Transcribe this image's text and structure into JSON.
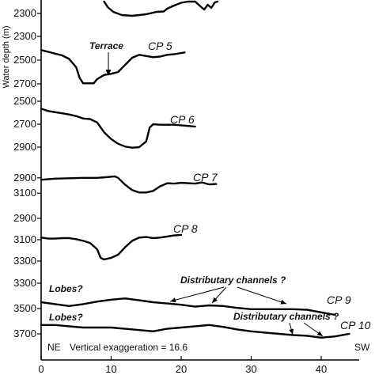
{
  "chart_data": {
    "type": "line",
    "ylabel": "Water depth (m)",
    "x_ticks": [
      0,
      10,
      20,
      30,
      40
    ],
    "xlim": [
      0,
      44
    ],
    "panels": [
      {
        "name": "",
        "yticks": [
          2300
        ],
        "ylim": [
          2150,
          2350
        ],
        "series": [
          {
            "name": "",
            "x": [
              9.0,
              9.5,
              10.3,
              11.5,
              13.0,
              15.0,
              16.5,
              17.5,
              18.0,
              19.0,
              20.0,
              21.0,
              22.0,
              23.0,
              23.3,
              23.8,
              24.3,
              24.8,
              25.2
            ],
            "y": [
              2150,
              2220,
              2280,
              2320,
              2330,
              2310,
              2280,
              2275,
              2240,
              2200,
              2165,
              2150,
              2150,
              2230,
              2250,
              2190,
              2230,
              2160,
              2150
            ]
          }
        ]
      },
      {
        "name": "CP 5",
        "yticks": [
          2300,
          2500,
          2700
        ],
        "ylim": [
          2300,
          2700
        ],
        "series": [
          {
            "name": "CP 5",
            "x": [
              0,
              1,
              2,
              3,
              4,
              5,
              5.5,
              6,
              7,
              7.5,
              8,
              9,
              9.5,
              10,
              11,
              12,
              13,
              14,
              15,
              16,
              17,
              18,
              19,
              20.5
            ],
            "y": [
              2415,
              2430,
              2445,
              2460,
              2490,
              2560,
              2650,
              2695,
              2695,
              2695,
              2660,
              2625,
              2620,
              2615,
              2600,
              2540,
              2480,
              2455,
              2465,
              2475,
              2470,
              2455,
              2450,
              2435
            ]
          }
        ]
      },
      {
        "name": "CP 6",
        "yticks": [
          2500,
          2700,
          2900
        ],
        "ylim": [
          2500,
          2900
        ],
        "series": [
          {
            "name": "CP 6",
            "x": [
              0,
              1,
              2,
              3,
              4,
              5,
              6,
              7,
              8,
              9,
              10,
              11,
              12,
              13,
              14,
              15,
              15.5,
              16,
              17,
              18,
              19,
              20,
              21,
              22
            ],
            "y": [
              2565,
              2585,
              2595,
              2605,
              2615,
              2630,
              2650,
              2655,
              2685,
              2770,
              2830,
              2870,
              2895,
              2905,
              2900,
              2850,
              2730,
              2700,
              2705,
              2705,
              2705,
              2710,
              2715,
              2720
            ]
          }
        ]
      },
      {
        "name": "CP 7",
        "yticks": [
          2900,
          3100
        ],
        "ylim": [
          2830,
          3180
        ],
        "series": [
          {
            "name": "CP 7",
            "x": [
              0,
              2,
              4,
              6,
              8,
              9.5,
              10.5,
              11,
              12,
              13,
              14,
              15,
              16,
              17,
              18,
              19,
              20,
              21,
              22,
              23,
              24,
              25
            ],
            "y": [
              2925,
              2910,
              2905,
              2900,
              2900,
              2890,
              2880,
              2900,
              2990,
              3060,
              3090,
              3090,
              3070,
              3010,
              2970,
              2975,
              2965,
              2970,
              2975,
              2960,
              2985,
              2980
            ]
          }
        ]
      },
      {
        "name": "CP 8",
        "yticks": [
          2900,
          3100,
          3300
        ],
        "ylim": [
          2900,
          3300
        ],
        "series": [
          {
            "name": "CP 8",
            "x": [
              0,
              1,
              2,
              3,
              4,
              5,
              6,
              7,
              8,
              8.5,
              9,
              10,
              11,
              12,
              13,
              14,
              15,
              16,
              17,
              18,
              19,
              20
            ],
            "y": [
              3080,
              3090,
              3090,
              3085,
              3085,
              3095,
              3110,
              3130,
              3190,
              3270,
              3285,
              3270,
              3240,
              3170,
              3110,
              3080,
              3075,
              3085,
              3080,
              3070,
              3060,
              3055
            ]
          }
        ]
      },
      {
        "name": "CP 9 / CP 10",
        "yticks": [
          3300,
          3500,
          3700
        ],
        "ylim": [
          3300,
          3700
        ],
        "series": [
          {
            "name": "CP 9",
            "x": [
              0,
              2,
              4,
              6,
              8,
              10,
              12,
              14,
              16,
              18,
              20,
              22,
              24,
              26,
              28,
              30,
              32,
              34,
              36,
              38,
              40,
              42
            ],
            "y": [
              3450,
              3465,
              3480,
              3465,
              3445,
              3430,
              3420,
              3435,
              3450,
              3460,
              3470,
              3485,
              3475,
              3480,
              3495,
              3505,
              3505,
              3505,
              3505,
              3510,
              3530,
              3550
            ]
          },
          {
            "name": "CP 10",
            "x": [
              0,
              2,
              4,
              6,
              8,
              10,
              12,
              14,
              16,
              18,
              20,
              22,
              24,
              26,
              28,
              30,
              32,
              34,
              36,
              38,
              40,
              42,
              44
            ],
            "y": [
              3630,
              3630,
              3640,
              3650,
              3650,
              3650,
              3660,
              3670,
              3680,
              3660,
              3650,
              3640,
              3630,
              3645,
              3665,
              3680,
              3690,
              3700,
              3710,
              3715,
              3730,
              3720,
              3700
            ]
          }
        ]
      }
    ],
    "annotations": {
      "terrace": "Terrace",
      "lobes_1": "Lobes?",
      "lobes_2": "Lobes?",
      "distributary_1": "Distributary channels ?",
      "distributary_2": "Distributary channels ?",
      "ne": "NE",
      "sw": "SW",
      "vertical_exaggeration": "Vertical exaggeration = 16.6"
    }
  }
}
